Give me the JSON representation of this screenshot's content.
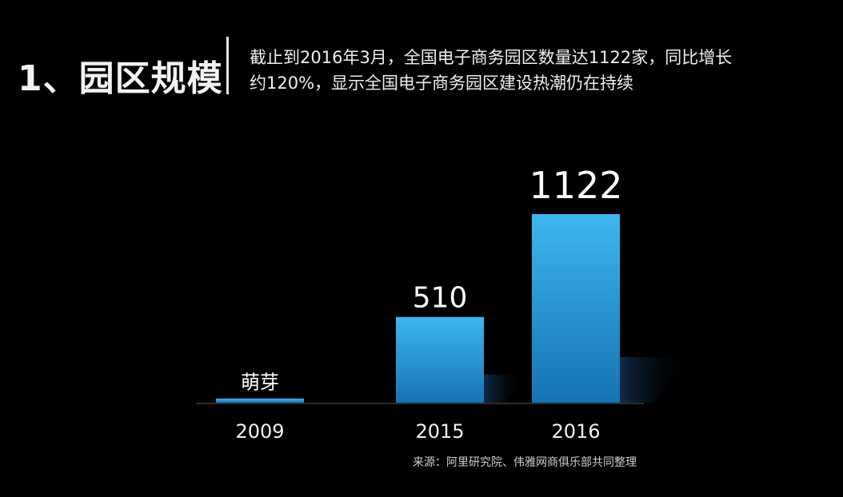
{
  "heading": "1、园区规模",
  "subtitle": {
    "line1": "截止到2016年3月，全国电子商务园区数量达1122家，同比增长",
    "line2": "约120%，显示全国电子商务园区建设热潮仍在持续"
  },
  "source": "来源：阿里研究院、伟雅网商俱乐部共同整理",
  "colors": {
    "bar_top": "#3db6ee",
    "bar_bottom": "#1673b3",
    "shadow": "#0d1f33",
    "axis": "#3a3a3a"
  },
  "chart_data": {
    "type": "bar",
    "categories": [
      "2009",
      "2015",
      "2016"
    ],
    "values": [
      25,
      510,
      1122
    ],
    "data_labels": [
      "萌芽",
      "510",
      "1122"
    ],
    "title": "",
    "xlabel": "",
    "ylabel": "",
    "ylim": [
      0,
      1122
    ],
    "grid": false
  }
}
